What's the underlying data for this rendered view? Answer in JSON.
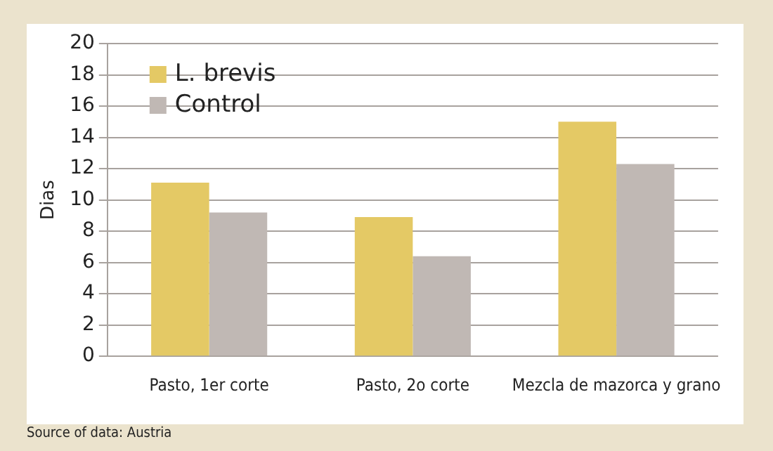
{
  "chart_data": {
    "type": "bar",
    "ylabel": "Dias",
    "categories": [
      "Pasto, 1er corte",
      "Pasto, 2o corte",
      "Mezcla de mazorca y grano"
    ],
    "series": [
      {
        "name": "L. brevis",
        "color": "#e4c965",
        "values": [
          11.1,
          8.9,
          15.0
        ]
      },
      {
        "name": "Control",
        "color": "#c0b8b4",
        "values": [
          9.2,
          6.4,
          12.3
        ]
      }
    ],
    "ylim": [
      0,
      20
    ],
    "yticks": [
      0,
      2,
      4,
      6,
      8,
      10,
      12,
      14,
      16,
      18,
      20
    ],
    "grid": "y",
    "legend": "top left",
    "annotations": [
      "Source of data: Austria"
    ]
  }
}
